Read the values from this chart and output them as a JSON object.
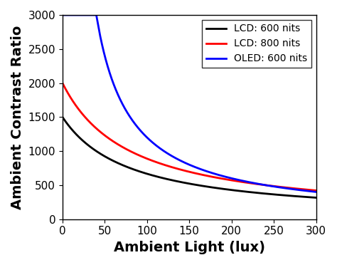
{
  "title": "",
  "xlabel": "Ambient Light (lux)",
  "ylabel": "Ambient Contrast Ratio",
  "xlim": [
    0,
    300
  ],
  "ylim": [
    0,
    3000
  ],
  "xticks": [
    0,
    50,
    100,
    150,
    200,
    250,
    300
  ],
  "yticks": [
    0,
    500,
    1000,
    1500,
    2000,
    2500,
    3000
  ],
  "lines": [
    {
      "label": "LCD: 600 nits",
      "color": "#000000",
      "linewidth": 2.0,
      "L_white": 600,
      "L_black": 0.4,
      "k": 0.005,
      "type": "lcd"
    },
    {
      "label": "LCD: 800 nits",
      "color": "#ff0000",
      "linewidth": 2.0,
      "L_white": 800,
      "L_black": 0.4,
      "k": 0.005,
      "type": "lcd"
    },
    {
      "label": "OLED: 600 nits",
      "color": "#0000ff",
      "linewidth": 2.0,
      "L_white": 600,
      "L_black": 0.0001,
      "k": 0.005,
      "type": "oled"
    }
  ],
  "legend_loc": "upper right",
  "legend_fontsize": 10,
  "axis_label_fontsize": 14,
  "tick_fontsize": 11,
  "background_color": "#ffffff",
  "figure_bg": "#ffffff"
}
